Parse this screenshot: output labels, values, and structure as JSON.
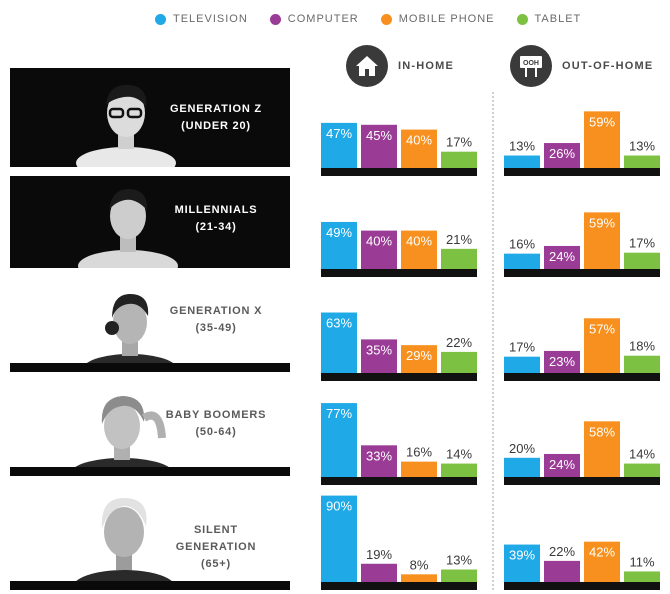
{
  "legend": [
    {
      "label": "TELEVISION",
      "color": "#1fa9e6"
    },
    {
      "label": "COMPUTER",
      "color": "#9a3b96"
    },
    {
      "label": "MOBILE PHONE",
      "color": "#f7901e"
    },
    {
      "label": "TABLET",
      "color": "#7dc142"
    }
  ],
  "headers": {
    "in_home": {
      "label": "IN-HOME",
      "icon": "house-icon"
    },
    "out_of_home": {
      "label": "OUT-OF-HOME",
      "icon": "billboard-icon",
      "icon_text": "OOH"
    }
  },
  "generations": [
    {
      "name": "GENERATION Z",
      "range": "(UNDER 20)",
      "panel": "dark"
    },
    {
      "name": "MILLENNIALS",
      "range": "(21-34)",
      "panel": "dark"
    },
    {
      "name": "GENERATION X",
      "range": "(35-49)",
      "panel": "light"
    },
    {
      "name": "BABY BOOMERS",
      "range": "(50-64)",
      "panel": "light"
    },
    {
      "name": "SILENT GENERATION",
      "name_lines": [
        "SILENT",
        "GENERATION"
      ],
      "range": "(65+)",
      "panel": "light"
    }
  ],
  "chart_data": {
    "type": "bar",
    "unit": "%",
    "categories": [
      "TELEVISION",
      "COMPUTER",
      "MOBILE PHONE",
      "TABLET"
    ],
    "panels": [
      {
        "name": "IN-HOME",
        "groups": [
          {
            "generation": "GENERATION Z",
            "values": [
              47,
              45,
              40,
              17
            ]
          },
          {
            "generation": "MILLENNIALS",
            "values": [
              49,
              40,
              40,
              21
            ]
          },
          {
            "generation": "GENERATION X",
            "values": [
              63,
              35,
              29,
              22
            ]
          },
          {
            "generation": "BABY BOOMERS",
            "values": [
              77,
              33,
              16,
              14
            ]
          },
          {
            "generation": "SILENT GENERATION",
            "values": [
              90,
              19,
              8,
              13
            ]
          }
        ]
      },
      {
        "name": "OUT-OF-HOME",
        "groups": [
          {
            "generation": "GENERATION Z",
            "values": [
              13,
              26,
              59,
              13
            ]
          },
          {
            "generation": "MILLENNIALS",
            "values": [
              16,
              24,
              59,
              17
            ]
          },
          {
            "generation": "GENERATION X",
            "values": [
              17,
              23,
              57,
              18
            ]
          },
          {
            "generation": "BABY BOOMERS",
            "values": [
              20,
              24,
              58,
              14
            ]
          },
          {
            "generation": "SILENT GENERATION",
            "values": [
              39,
              22,
              42,
              11
            ]
          }
        ]
      }
    ]
  }
}
